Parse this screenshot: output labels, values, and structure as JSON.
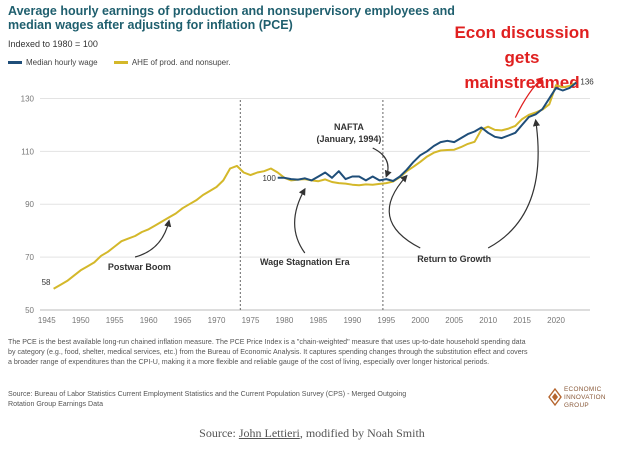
{
  "chart_data": {
    "type": "line",
    "title": "Average hourly earnings of production and nonsupervisory employees and median wages after adjusting for inflation (PCE)",
    "subtitle": "Indexed to 1980 = 100",
    "xlim": [
      1944,
      2025
    ],
    "ylim": [
      50,
      140
    ],
    "xticks": [
      1945,
      1950,
      1955,
      1960,
      1965,
      1970,
      1975,
      1980,
      1985,
      1990,
      1995,
      2000,
      2005,
      2010,
      2015,
      2020
    ],
    "yticks": [
      50,
      70,
      90,
      110,
      130
    ],
    "grid": true,
    "legend_placement": "top-left",
    "series": [
      {
        "name": "Median hourly wage",
        "color": "#1f4e79",
        "points": [
          [
            1979,
            100
          ],
          [
            1980,
            100
          ],
          [
            1981,
            99.5
          ],
          [
            1982,
            99.3
          ],
          [
            1983,
            99.8
          ],
          [
            1984,
            99
          ],
          [
            1985,
            100.5
          ],
          [
            1986,
            102
          ],
          [
            1987,
            100
          ],
          [
            1988,
            102.5
          ],
          [
            1989,
            99.5
          ],
          [
            1990,
            100.5
          ],
          [
            1991,
            100.5
          ],
          [
            1992,
            99
          ],
          [
            1993,
            100.5
          ],
          [
            1994,
            99
          ],
          [
            1995,
            99.5
          ],
          [
            1996,
            98.8
          ],
          [
            1997,
            100.5
          ],
          [
            1998,
            103
          ],
          [
            1999,
            106
          ],
          [
            2000,
            108.5
          ],
          [
            2001,
            110
          ],
          [
            2002,
            112
          ],
          [
            2003,
            113.5
          ],
          [
            2004,
            114
          ],
          [
            2005,
            113.5
          ],
          [
            2006,
            115
          ],
          [
            2007,
            116.5
          ],
          [
            2008,
            117.5
          ],
          [
            2009,
            119
          ],
          [
            2010,
            117
          ],
          [
            2011,
            115.5
          ],
          [
            2012,
            115
          ],
          [
            2013,
            116
          ],
          [
            2014,
            117
          ],
          [
            2015,
            120
          ],
          [
            2016,
            123
          ],
          [
            2017,
            124
          ],
          [
            2018,
            126
          ],
          [
            2019,
            130
          ],
          [
            2020,
            134
          ],
          [
            2021,
            133
          ],
          [
            2022,
            134
          ],
          [
            2023,
            136
          ]
        ]
      },
      {
        "name": "AHE of prod. and nonsuper.",
        "color": "#d4b82a",
        "points": [
          [
            1946,
            58
          ],
          [
            1947,
            59.5
          ],
          [
            1948,
            61
          ],
          [
            1949,
            63
          ],
          [
            1950,
            65
          ],
          [
            1951,
            66.5
          ],
          [
            1952,
            68
          ],
          [
            1953,
            70.5
          ],
          [
            1954,
            72
          ],
          [
            1955,
            74
          ],
          [
            1956,
            76
          ],
          [
            1957,
            77
          ],
          [
            1958,
            78
          ],
          [
            1959,
            79.5
          ],
          [
            1960,
            80.5
          ],
          [
            1961,
            82
          ],
          [
            1962,
            83.5
          ],
          [
            1963,
            85
          ],
          [
            1964,
            86.5
          ],
          [
            1965,
            88.5
          ],
          [
            1966,
            90
          ],
          [
            1967,
            91.5
          ],
          [
            1968,
            93.5
          ],
          [
            1969,
            95
          ],
          [
            1970,
            96.5
          ],
          [
            1971,
            99
          ],
          [
            1972,
            103.5
          ],
          [
            1973,
            104.5
          ],
          [
            1974,
            102
          ],
          [
            1975,
            101
          ],
          [
            1976,
            102
          ],
          [
            1977,
            102.5
          ],
          [
            1978,
            103.5
          ],
          [
            1979,
            102
          ],
          [
            1980,
            100
          ],
          [
            1981,
            99
          ],
          [
            1982,
            99.3
          ],
          [
            1983,
            99.5
          ],
          [
            1984,
            99
          ],
          [
            1985,
            98.7
          ],
          [
            1986,
            99.4
          ],
          [
            1987,
            98.4
          ],
          [
            1988,
            98
          ],
          [
            1989,
            97.8
          ],
          [
            1990,
            97.4
          ],
          [
            1991,
            97.2
          ],
          [
            1992,
            97.5
          ],
          [
            1993,
            97.4
          ],
          [
            1994,
            97.7
          ],
          [
            1995,
            98
          ],
          [
            1996,
            98.6
          ],
          [
            1997,
            100.2
          ],
          [
            1998,
            102.5
          ],
          [
            1999,
            104.2
          ],
          [
            2000,
            106
          ],
          [
            2001,
            108
          ],
          [
            2002,
            109.5
          ],
          [
            2003,
            110.3
          ],
          [
            2004,
            110.5
          ],
          [
            2005,
            110.6
          ],
          [
            2006,
            111.6
          ],
          [
            2007,
            112.8
          ],
          [
            2008,
            113.6
          ],
          [
            2009,
            118.2
          ],
          [
            2010,
            119.3
          ],
          [
            2011,
            118.1
          ],
          [
            2012,
            117.9
          ],
          [
            2013,
            118.6
          ],
          [
            2014,
            119.6
          ],
          [
            2015,
            122.2
          ],
          [
            2016,
            123.8
          ],
          [
            2017,
            124.7
          ],
          [
            2018,
            125.8
          ],
          [
            2019,
            127.8
          ],
          [
            2020,
            135
          ],
          [
            2021,
            134.2
          ],
          [
            2022,
            134.8
          ],
          [
            2023,
            136
          ]
        ]
      }
    ],
    "dividers": [
      1973.5,
      1994.5
    ],
    "labels": {
      "start_value": "58",
      "end_value": "136",
      "mid_value": "100",
      "postwar": "Postwar Boom",
      "stagnation": "Wage Stagnation Era",
      "growth": "Return to Growth",
      "nafta_line1": "NAFTA",
      "nafta_line2": "(January, 1994)"
    }
  },
  "annotation_red": {
    "line1": "Econ discussion",
    "line2": "gets mainstreamed",
    "color": "#e02020"
  },
  "legend": {
    "median": "Median hourly wage",
    "ahe": "AHE of prod. and nonsuper."
  },
  "note": "The PCE is the best available long-run chained inflation measure. The PCE Price Index is a \"chain-weighted\" measure that uses up-to-date household spending data by category (e.g., food, shelter, medical services, etc.) from the Bureau of Economic Analysis. It captures spending changes through the substitution effect and covers a broader range of expenditures than the CPI-U, making it a more flexible and reliable gauge of the cost of living, especially over longer historical periods.",
  "source": "Source: Bureau of Labor Statistics Current Employment Statistics and the Current Population Survey (CPS) - Merged Outgoing Rotation Group Earnings Data",
  "logo": {
    "line1": "ECONOMIC",
    "line2": "INNOVATION",
    "line3": "GROUP",
    "icon": "diamond-logo-icon"
  },
  "credit": {
    "prefix": "Source: ",
    "author": "John Lettieri",
    "suffix": ", modified by Noah Smith"
  }
}
